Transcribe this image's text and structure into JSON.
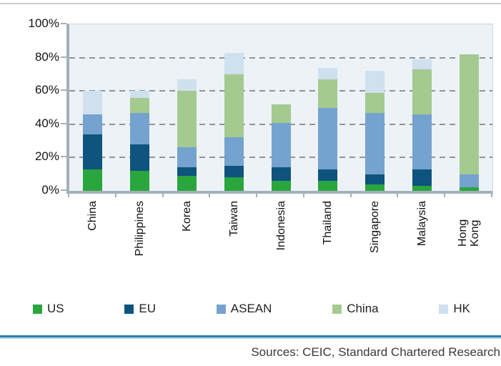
{
  "chart_data": {
    "type": "bar",
    "stacked": true,
    "orientation": "vertical",
    "categories": [
      "China",
      "Philippines",
      "Korea",
      "Taiwan",
      "Indonesia",
      "Thailand",
      "Singapore",
      "Malaysia",
      "Hong Kong"
    ],
    "series": [
      {
        "name": "US",
        "color": "#2aa63e",
        "values": [
          13,
          12,
          9,
          8,
          6,
          6,
          4,
          3,
          2
        ]
      },
      {
        "name": "EU",
        "color": "#0e547e",
        "values": [
          21,
          16,
          5,
          7,
          8,
          7,
          6,
          10,
          0
        ]
      },
      {
        "name": "ASEAN",
        "color": "#74a3cf",
        "values": [
          12,
          19,
          12,
          17,
          27,
          37,
          37,
          33,
          8
        ]
      },
      {
        "name": "China",
        "color": "#a4ca90",
        "values": [
          0,
          9,
          34,
          38,
          11,
          17,
          12,
          27,
          72
        ]
      },
      {
        "name": "HK",
        "color": "#cfe0ee",
        "values": [
          14,
          4,
          7,
          13,
          0,
          7,
          13,
          6,
          0
        ]
      }
    ],
    "totals": [
      60,
      60,
      67,
      83,
      52,
      74,
      72,
      79,
      82
    ],
    "title": "",
    "xlabel": "",
    "ylabel": "",
    "y_axis": {
      "min": 0,
      "max": 100,
      "step": 20,
      "tick_labels": [
        "100%",
        "80%",
        "60%",
        "40%",
        "20%",
        "0%"
      ]
    },
    "grid": "horizontal-dashed",
    "legend_position": "bottom",
    "plot_background": "#edf2f6",
    "axis_color": "#a2b1ba",
    "gridline_color": "#8c959b"
  },
  "legend": {
    "items": [
      {
        "label": "US",
        "color": "#2aa63e"
      },
      {
        "label": "EU",
        "color": "#0e547e"
      },
      {
        "label": "ASEAN",
        "color": "#74a3cf"
      },
      {
        "label": "China",
        "color": "#a4ca90"
      },
      {
        "label": "HK",
        "color": "#cfe0ee"
      }
    ]
  },
  "footer": {
    "sources": "Sources: CEIC, Standard Chartered Research",
    "divider_color": "#2e7dad"
  }
}
